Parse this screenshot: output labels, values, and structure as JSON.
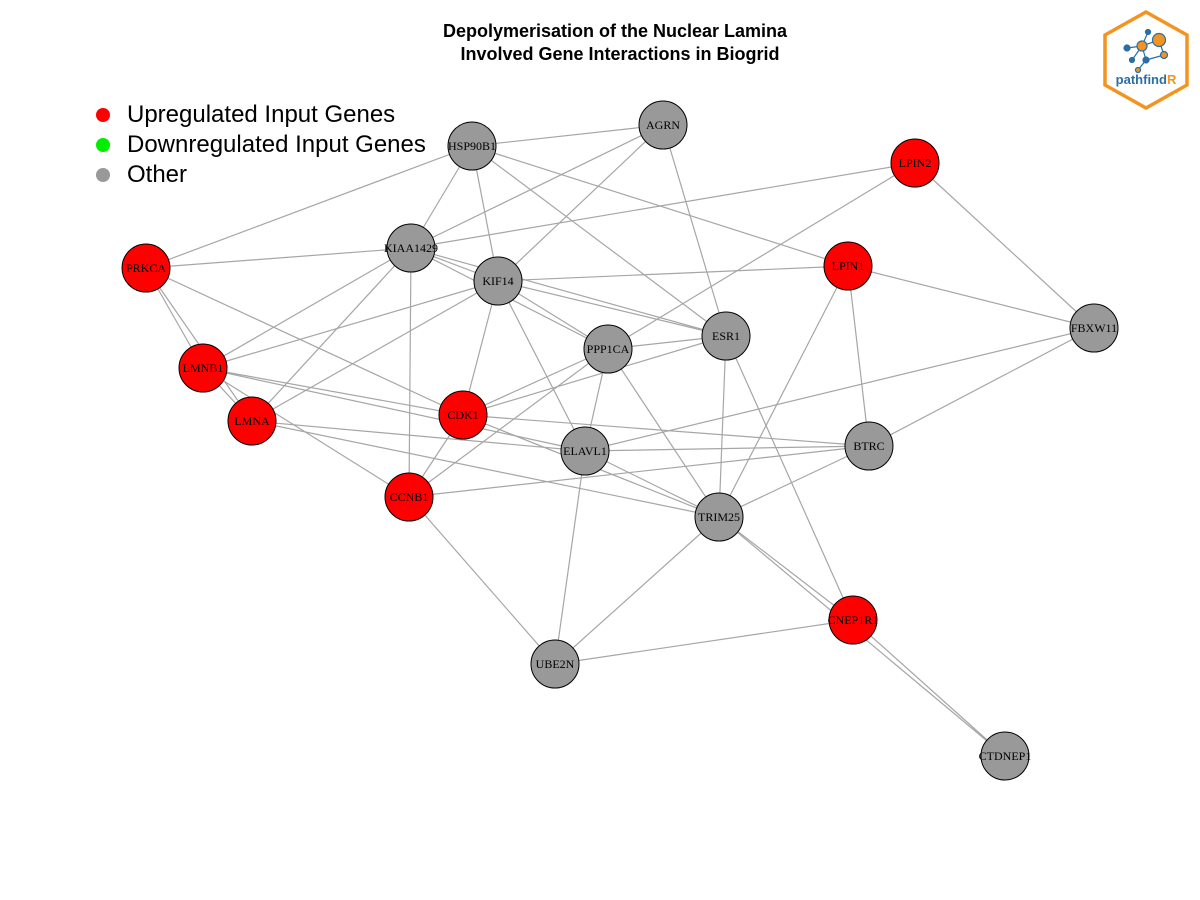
{
  "title": {
    "line1": "Depolymerisation of the Nuclear Lamina",
    "line2": "  Involved Gene Interactions in Biogrid"
  },
  "legend": {
    "items": [
      {
        "label": "Upregulated Input Genes",
        "color": "#ff0000"
      },
      {
        "label": "Downregulated Input Genes",
        "color": "#00ee00"
      },
      {
        "label": "Other",
        "color": "#999999"
      }
    ]
  },
  "colors": {
    "up": "#ff0000",
    "down": "#00ee00",
    "other": "#999999",
    "edge": "#a6a6a6",
    "logo_orange": "#f39420",
    "logo_blue": "#2b6ea3"
  },
  "network": {
    "nodes": [
      {
        "id": "AGRN",
        "type": "other"
      },
      {
        "id": "HSP90B1",
        "type": "other"
      },
      {
        "id": "LPIN2",
        "type": "up"
      },
      {
        "id": "KIAA1429",
        "type": "other"
      },
      {
        "id": "PRKCA",
        "type": "up"
      },
      {
        "id": "KIF14",
        "type": "other"
      },
      {
        "id": "LPIN1",
        "type": "up"
      },
      {
        "id": "FBXW11",
        "type": "other"
      },
      {
        "id": "ESR1",
        "type": "other"
      },
      {
        "id": "PPP1CA",
        "type": "other"
      },
      {
        "id": "LMNB1",
        "type": "up"
      },
      {
        "id": "CDK1",
        "type": "up"
      },
      {
        "id": "LMNA",
        "type": "up"
      },
      {
        "id": "ELAVL1",
        "type": "other"
      },
      {
        "id": "BTRC",
        "type": "other"
      },
      {
        "id": "CCNB1",
        "type": "up"
      },
      {
        "id": "TRIM25",
        "type": "other"
      },
      {
        "id": "CNEP1R1",
        "type": "up"
      },
      {
        "id": "UBE2N",
        "type": "other"
      },
      {
        "id": "CTDNEP1",
        "type": "other"
      }
    ],
    "edges": [
      [
        "AGRN",
        "HSP90B1"
      ],
      [
        "AGRN",
        "KIAA1429"
      ],
      [
        "AGRN",
        "KIF14"
      ],
      [
        "AGRN",
        "ESR1"
      ],
      [
        "HSP90B1",
        "PRKCA"
      ],
      [
        "HSP90B1",
        "KIAA1429"
      ],
      [
        "HSP90B1",
        "KIF14"
      ],
      [
        "HSP90B1",
        "LPIN1"
      ],
      [
        "HSP90B1",
        "ESR1"
      ],
      [
        "LPIN2",
        "KIAA1429"
      ],
      [
        "LPIN2",
        "PPP1CA"
      ],
      [
        "LPIN2",
        "FBXW11"
      ],
      [
        "KIAA1429",
        "PRKCA"
      ],
      [
        "KIAA1429",
        "KIF14"
      ],
      [
        "KIAA1429",
        "ESR1"
      ],
      [
        "KIAA1429",
        "PPP1CA"
      ],
      [
        "KIAA1429",
        "LMNB1"
      ],
      [
        "KIAA1429",
        "LMNA"
      ],
      [
        "KIAA1429",
        "CCNB1"
      ],
      [
        "PRKCA",
        "LMNB1"
      ],
      [
        "PRKCA",
        "LMNA"
      ],
      [
        "PRKCA",
        "CDK1"
      ],
      [
        "KIF14",
        "LPIN1"
      ],
      [
        "KIF14",
        "ESR1"
      ],
      [
        "KIF14",
        "PPP1CA"
      ],
      [
        "KIF14",
        "LMNB1"
      ],
      [
        "KIF14",
        "LMNA"
      ],
      [
        "KIF14",
        "CDK1"
      ],
      [
        "KIF14",
        "ELAVL1"
      ],
      [
        "LPIN1",
        "FBXW11"
      ],
      [
        "LPIN1",
        "BTRC"
      ],
      [
        "LPIN1",
        "TRIM25"
      ],
      [
        "FBXW11",
        "ELAVL1"
      ],
      [
        "FBXW11",
        "BTRC"
      ],
      [
        "ESR1",
        "PPP1CA"
      ],
      [
        "ESR1",
        "CDK1"
      ],
      [
        "ESR1",
        "TRIM25"
      ],
      [
        "ESR1",
        "CNEP1R1"
      ],
      [
        "PPP1CA",
        "CDK1"
      ],
      [
        "PPP1CA",
        "CCNB1"
      ],
      [
        "PPP1CA",
        "ELAVL1"
      ],
      [
        "PPP1CA",
        "TRIM25"
      ],
      [
        "LMNB1",
        "LMNA"
      ],
      [
        "LMNB1",
        "CDK1"
      ],
      [
        "LMNB1",
        "ELAVL1"
      ],
      [
        "LMNB1",
        "CCNB1"
      ],
      [
        "CDK1",
        "CCNB1"
      ],
      [
        "CDK1",
        "BTRC"
      ],
      [
        "CDK1",
        "TRIM25"
      ],
      [
        "LMNA",
        "ELAVL1"
      ],
      [
        "LMNA",
        "TRIM25"
      ],
      [
        "ELAVL1",
        "BTRC"
      ],
      [
        "ELAVL1",
        "UBE2N"
      ],
      [
        "ELAVL1",
        "TRIM25"
      ],
      [
        "BTRC",
        "CCNB1"
      ],
      [
        "BTRC",
        "TRIM25"
      ],
      [
        "CCNB1",
        "UBE2N"
      ],
      [
        "TRIM25",
        "UBE2N"
      ],
      [
        "TRIM25",
        "CNEP1R1"
      ],
      [
        "TRIM25",
        "CTDNEP1"
      ],
      [
        "CNEP1R1",
        "UBE2N"
      ],
      [
        "CNEP1R1",
        "CTDNEP1"
      ]
    ]
  },
  "logo": {
    "text_main": "pathfind",
    "text_accent": "R"
  }
}
